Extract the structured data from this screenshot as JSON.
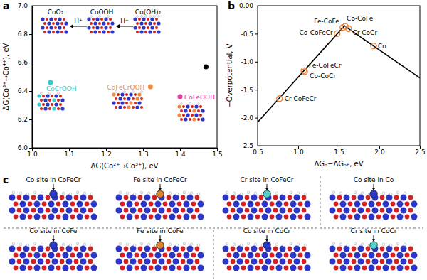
{
  "chart_data": [
    {
      "type": "scatter",
      "title": "a",
      "x_label": "ΔG(Co²⁺→Co³⁺), eV",
      "y_label": "ΔG(Co³⁺→Co⁴⁺), eV",
      "x": [
        1.47,
        1.05,
        1.32,
        1.4
      ],
      "values": [
        6.57,
        6.46,
        6.43,
        6.36
      ],
      "colors": [
        "#000000",
        "#33cccc",
        "#f08a3c",
        "#e6399b"
      ],
      "point_labels": [
        null,
        "CoCrOOH",
        "CoFeCrOOH",
        "CoFeOOH"
      ],
      "annotations": [
        "CoO₂",
        "CoOOH",
        "Co(OH)₂",
        "H⁺",
        "H⁺"
      ],
      "xlim": [
        1.0,
        1.5
      ],
      "xticks": [
        {
          "value": 1,
          "label": "1.0"
        },
        1.1,
        1.2,
        1.3,
        1.4,
        1.5
      ],
      "ylim": [
        6.0,
        7.0
      ],
      "yticks": [
        {
          "value": 6,
          "label": "6.0"
        },
        6.2,
        6.4,
        6.6,
        6.8,
        {
          "value": 7,
          "label": "7.0"
        }
      ],
      "grid": false
    },
    {
      "type": "line",
      "title": "b",
      "x_label": "ΔGₒ−ΔGₒₕ, eV",
      "y_label": "−Overpotential, V",
      "series": [
        {
          "type": "line",
          "color": "#000000",
          "x": [
            0.5,
            1.57,
            2.5
          ],
          "values": [
            -2.08,
            -0.36,
            -1.29
          ]
        },
        {
          "type": "scatter",
          "marker": "open-circle",
          "color": "#e8823a",
          "x": [
            0.77,
            1.07,
            1.08,
            1.48,
            1.55,
            1.58,
            1.62,
            1.93
          ],
          "values": [
            -1.66,
            -1.16,
            -1.18,
            -0.5,
            -0.39,
            -0.37,
            -0.41,
            -0.72
          ],
          "point_labels": [
            "Cr-CoFeCr",
            "Fe-CoFeCr",
            "Co-CoCr",
            "Co-CoFeCr",
            "Fe-CoFe",
            "Co-CoFe",
            "Cr-CoCr",
            "Co"
          ]
        }
      ],
      "xlim": [
        0.5,
        2.5
      ],
      "xticks": [
        0.5,
        {
          "value": 1,
          "label": "1.0"
        },
        1.5,
        {
          "value": 2,
          "label": "2.0"
        },
        2.5
      ],
      "ylim": [
        -2.5,
        0
      ],
      "yticks": [
        {
          "value": 0,
          "label": "0.00"
        },
        -0.5,
        {
          "value": -1,
          "label": "-1.0"
        },
        -1.5,
        {
          "value": -2,
          "label": "-2.0"
        },
        -2.5
      ],
      "grid": false
    }
  ],
  "structures": {
    "title": "c",
    "items": [
      {
        "caption": "Co site in CoFeCr",
        "color": "#2b35c8"
      },
      {
        "caption": "Fe site in CoFeCr",
        "color": "#d9822b"
      },
      {
        "caption": "Cr site in CoFeCr",
        "color": "#4dd0c8"
      },
      {
        "caption": "Co site in Co",
        "color": "#2b35c8"
      },
      {
        "caption": "Co site in CoFe",
        "color": "#2b35c8"
      },
      {
        "caption": "Fe site in CoFe",
        "color": "#d9822b"
      },
      {
        "caption": "Co site in CoCr",
        "color": "#2b35c8"
      },
      {
        "caption": "Cr site in CoCr",
        "color": "#4dd0c8"
      }
    ]
  }
}
